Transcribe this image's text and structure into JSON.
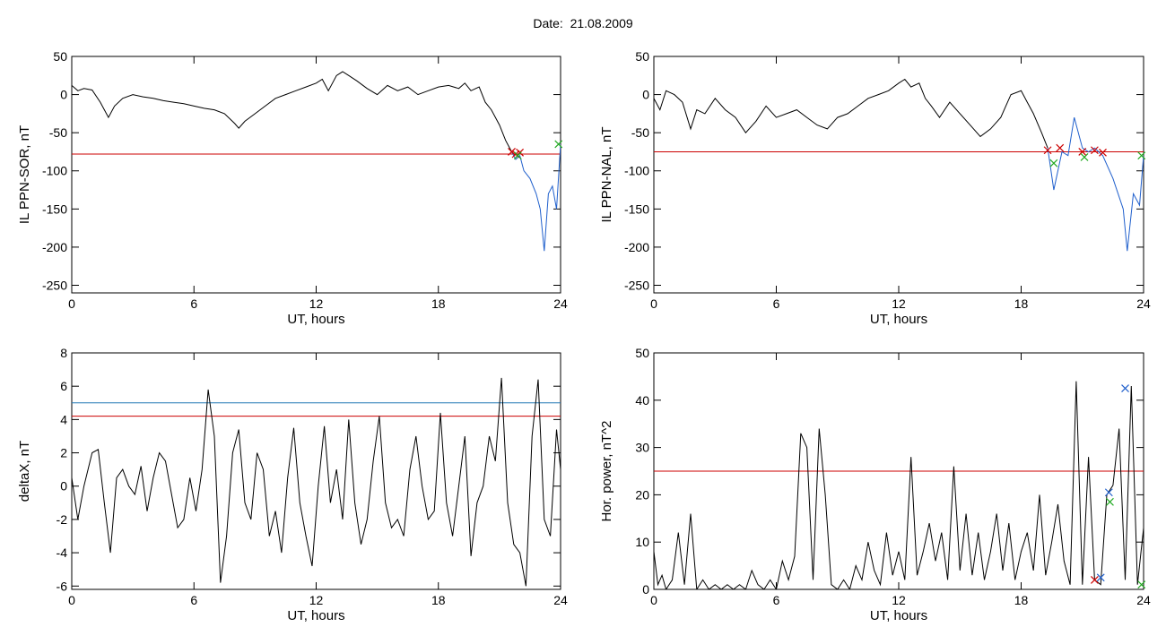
{
  "page_title": "Date:  21.08.2009",
  "colors": {
    "trace": "#000000",
    "threshold_red": "#cc0000",
    "threshold_blue": "#1f77b4",
    "marker_green": "#22aa22"
  },
  "chart_data": [
    {
      "type": "line",
      "ylabel": "IL PPN-SOR, nT",
      "xlabel": "UT, hours",
      "xlim": [
        0,
        24
      ],
      "ylim": [
        -260,
        50
      ],
      "xticks": [
        0,
        6,
        12,
        18,
        24
      ],
      "yticks": [
        50,
        0,
        -50,
        -100,
        -150,
        -200,
        -250
      ],
      "series": [
        {
          "color": "#000000",
          "x": [
            0,
            0.3,
            0.6,
            1,
            1.4,
            1.8,
            2.1,
            2.5,
            3,
            3.5,
            4,
            4.5,
            5,
            5.5,
            6,
            6.5,
            7,
            7.5,
            8,
            8.2,
            8.5,
            9,
            9.5,
            10,
            10.5,
            11,
            11.5,
            12,
            12.3,
            12.6,
            13,
            13.3,
            13.6,
            14,
            14.5,
            15,
            15.5,
            16,
            16.5,
            17,
            17.5,
            18,
            18.5,
            19,
            19.3,
            19.6,
            20,
            20.3,
            20.6,
            21,
            21.3,
            21.6
          ],
          "y": [
            12,
            5,
            8,
            6,
            -10,
            -30,
            -15,
            -5,
            0,
            -3,
            -5,
            -8,
            -10,
            -12,
            -15,
            -18,
            -20,
            -25,
            -38,
            -44,
            -35,
            -25,
            -15,
            -5,
            0,
            5,
            10,
            15,
            20,
            5,
            25,
            30,
            25,
            18,
            8,
            0,
            12,
            5,
            10,
            0,
            5,
            10,
            12,
            8,
            15,
            5,
            10,
            -10,
            -20,
            -40,
            -60,
            -75
          ]
        },
        {
          "color": "#1f5fcc",
          "x": [
            21.6,
            21.8,
            22,
            22.2,
            22.5,
            22.8,
            23,
            23.2,
            23.4,
            23.6,
            23.8,
            24
          ],
          "y": [
            -75,
            -85,
            -80,
            -100,
            -110,
            -130,
            -150,
            -205,
            -130,
            -120,
            -150,
            -65
          ]
        }
      ],
      "hlines": [
        {
          "y": -78,
          "color": "#cc0000"
        }
      ],
      "markers": [
        {
          "x": 21.6,
          "y": -75,
          "color": "#cc0000"
        },
        {
          "x": 21.8,
          "y": -78,
          "color": "#cc0000"
        },
        {
          "x": 22.0,
          "y": -76,
          "color": "#cc0000"
        },
        {
          "x": 21.9,
          "y": -80,
          "color": "#22aa22"
        },
        {
          "x": 23.9,
          "y": -65,
          "color": "#22aa22"
        }
      ]
    },
    {
      "type": "line",
      "ylabel": "IL PPN-NAL, nT",
      "xlabel": "UT, hours",
      "xlim": [
        0,
        24
      ],
      "ylim": [
        -260,
        50
      ],
      "xticks": [
        0,
        6,
        12,
        18,
        24
      ],
      "yticks": [
        50,
        0,
        -50,
        -100,
        -150,
        -200,
        -250
      ],
      "series": [
        {
          "color": "#000000",
          "x": [
            0,
            0.3,
            0.6,
            1,
            1.4,
            1.8,
            2.1,
            2.5,
            3,
            3.5,
            4,
            4.5,
            5,
            5.5,
            6,
            6.5,
            7,
            7.5,
            8,
            8.5,
            9,
            9.5,
            10,
            10.5,
            11,
            11.5,
            12,
            12.3,
            12.6,
            13,
            13.3,
            13.6,
            14,
            14.5,
            15,
            15.5,
            16,
            16.5,
            17,
            17.5,
            18,
            18.3,
            18.6,
            19,
            19.3
          ],
          "y": [
            -5,
            -20,
            5,
            0,
            -10,
            -45,
            -20,
            -25,
            -5,
            -20,
            -30,
            -50,
            -35,
            -15,
            -30,
            -25,
            -20,
            -30,
            -40,
            -45,
            -30,
            -25,
            -15,
            -5,
            0,
            5,
            15,
            20,
            10,
            15,
            -5,
            -15,
            -30,
            -10,
            -25,
            -40,
            -55,
            -45,
            -30,
            0,
            5,
            -10,
            -25,
            -50,
            -70
          ]
        },
        {
          "color": "#1f5fcc",
          "x": [
            19.3,
            19.6,
            20,
            20.3,
            20.6,
            21,
            21.3,
            21.6,
            22,
            22.5,
            23,
            23.2,
            23.5,
            23.8,
            24
          ],
          "y": [
            -70,
            -125,
            -75,
            -80,
            -30,
            -70,
            -75,
            -70,
            -80,
            -110,
            -150,
            -205,
            -130,
            -145,
            -80
          ]
        }
      ],
      "hlines": [
        {
          "y": -75,
          "color": "#cc0000"
        }
      ],
      "markers": [
        {
          "x": 19.3,
          "y": -73,
          "color": "#cc0000"
        },
        {
          "x": 19.9,
          "y": -70,
          "color": "#cc0000"
        },
        {
          "x": 21.0,
          "y": -75,
          "color": "#cc0000"
        },
        {
          "x": 21.6,
          "y": -73,
          "color": "#cc0000"
        },
        {
          "x": 22.0,
          "y": -76,
          "color": "#cc0000"
        },
        {
          "x": 19.6,
          "y": -90,
          "color": "#22aa22"
        },
        {
          "x": 21.1,
          "y": -82,
          "color": "#22aa22"
        },
        {
          "x": 23.9,
          "y": -80,
          "color": "#22aa22"
        }
      ]
    },
    {
      "type": "line",
      "ylabel": "deltaX, nT",
      "xlabel": "UT, hours",
      "xlim": [
        0,
        24
      ],
      "ylim": [
        -6.2,
        8
      ],
      "xticks": [
        0,
        6,
        12,
        18,
        24
      ],
      "yticks": [
        8,
        6,
        4,
        2,
        0,
        -2,
        -4,
        -6
      ],
      "series": [
        {
          "color": "#000000",
          "x": [
            0,
            0.3,
            0.6,
            1,
            1.3,
            1.6,
            1.9,
            2.2,
            2.5,
            2.8,
            3.1,
            3.4,
            3.7,
            4,
            4.3,
            4.6,
            4.9,
            5.2,
            5.5,
            5.8,
            6.1,
            6.4,
            6.7,
            7,
            7.3,
            7.6,
            7.9,
            8.2,
            8.5,
            8.8,
            9.1,
            9.4,
            9.7,
            10,
            10.3,
            10.6,
            10.9,
            11.2,
            11.5,
            11.8,
            12.1,
            12.4,
            12.7,
            13,
            13.3,
            13.6,
            13.9,
            14.2,
            14.5,
            14.8,
            15.1,
            15.4,
            15.7,
            16,
            16.3,
            16.6,
            16.9,
            17.2,
            17.5,
            17.8,
            18.1,
            18.4,
            18.7,
            19,
            19.3,
            19.6,
            19.9,
            20.2,
            20.5,
            20.8,
            21.1,
            21.4,
            21.7,
            22,
            22.3,
            22.6,
            22.9,
            23.2,
            23.5,
            23.8,
            24
          ],
          "y": [
            0.5,
            -2,
            0,
            2,
            2.2,
            -1,
            -4,
            0.5,
            1,
            0,
            -0.5,
            1.2,
            -1.5,
            0.5,
            2,
            1.5,
            -0.5,
            -2.5,
            -2,
            0.5,
            -1.5,
            1,
            5.8,
            3,
            -5.8,
            -3,
            2,
            3.4,
            -1,
            -2,
            2,
            1,
            -3,
            -1.5,
            -4,
            0.5,
            3.5,
            -1,
            -3,
            -4.8,
            0,
            3.6,
            -1,
            1,
            -2,
            4,
            -1,
            -3.5,
            -2,
            1.5,
            4.2,
            -1,
            -2.5,
            -2,
            -3,
            1,
            3,
            0,
            -2,
            -1.5,
            4.4,
            -1,
            -3,
            0,
            3,
            -4.2,
            -1,
            0,
            3,
            1.5,
            6.5,
            -1,
            -3.5,
            -4,
            -6,
            3,
            6.4,
            -2,
            -3,
            3.4,
            1
          ]
        }
      ],
      "hlines": [
        {
          "y": 5,
          "color": "#1f77b4"
        },
        {
          "y": 4.2,
          "color": "#cc0000"
        }
      ],
      "markers": []
    },
    {
      "type": "line",
      "ylabel": "Hor. power, nT^2",
      "xlabel": "UT, hours",
      "xlim": [
        0,
        24
      ],
      "ylim": [
        0,
        50
      ],
      "xticks": [
        0,
        6,
        12,
        18,
        24
      ],
      "yticks": [
        50,
        40,
        30,
        20,
        10,
        0
      ],
      "series": [
        {
          "color": "#000000",
          "x": [
            0,
            0.2,
            0.4,
            0.6,
            0.9,
            1.2,
            1.5,
            1.8,
            2.1,
            2.4,
            2.7,
            3,
            3.3,
            3.6,
            3.9,
            4.2,
            4.5,
            4.8,
            5.1,
            5.4,
            5.7,
            6,
            6.3,
            6.6,
            6.9,
            7.2,
            7.5,
            7.8,
            8.1,
            8.4,
            8.7,
            9,
            9.3,
            9.6,
            9.9,
            10.2,
            10.5,
            10.8,
            11.1,
            11.4,
            11.7,
            12,
            12.3,
            12.6,
            12.9,
            13.2,
            13.5,
            13.8,
            14.1,
            14.4,
            14.7,
            15,
            15.3,
            15.6,
            15.9,
            16.2,
            16.5,
            16.8,
            17.1,
            17.4,
            17.7,
            18,
            18.3,
            18.6,
            18.9,
            19.2,
            19.5,
            19.8,
            20.1,
            20.4,
            20.7,
            21,
            21.3,
            21.6,
            21.9,
            22.2,
            22.5,
            22.8,
            23.1,
            23.4,
            23.7,
            24
          ],
          "y": [
            8,
            1,
            3,
            0,
            2,
            12,
            1,
            16,
            0,
            2,
            0,
            1,
            0,
            1,
            0,
            1,
            0,
            4,
            1,
            0,
            2,
            0,
            6,
            2,
            7,
            33,
            30,
            2,
            34,
            20,
            1,
            0,
            2,
            0,
            5,
            2,
            10,
            4,
            1,
            12,
            3,
            8,
            2,
            28,
            3,
            8,
            14,
            6,
            12,
            2,
            26,
            4,
            16,
            3,
            12,
            2,
            8,
            16,
            4,
            14,
            2,
            8,
            12,
            4,
            20,
            3,
            10,
            18,
            6,
            1,
            44,
            1,
            28,
            2,
            1,
            20,
            22,
            34,
            2,
            43,
            1,
            13
          ]
        }
      ],
      "hlines": [
        {
          "y": 25,
          "color": "#cc0000"
        }
      ],
      "markers": [
        {
          "x": 21.6,
          "y": 2,
          "color": "#cc0000"
        },
        {
          "x": 21.9,
          "y": 2.5,
          "color": "#1f5fcc"
        },
        {
          "x": 22.3,
          "y": 20.5,
          "color": "#1f5fcc"
        },
        {
          "x": 22.35,
          "y": 18.5,
          "color": "#22aa22"
        },
        {
          "x": 23.1,
          "y": 42.5,
          "color": "#1f5fcc"
        },
        {
          "x": 23.9,
          "y": 1,
          "color": "#22aa22"
        }
      ]
    }
  ]
}
